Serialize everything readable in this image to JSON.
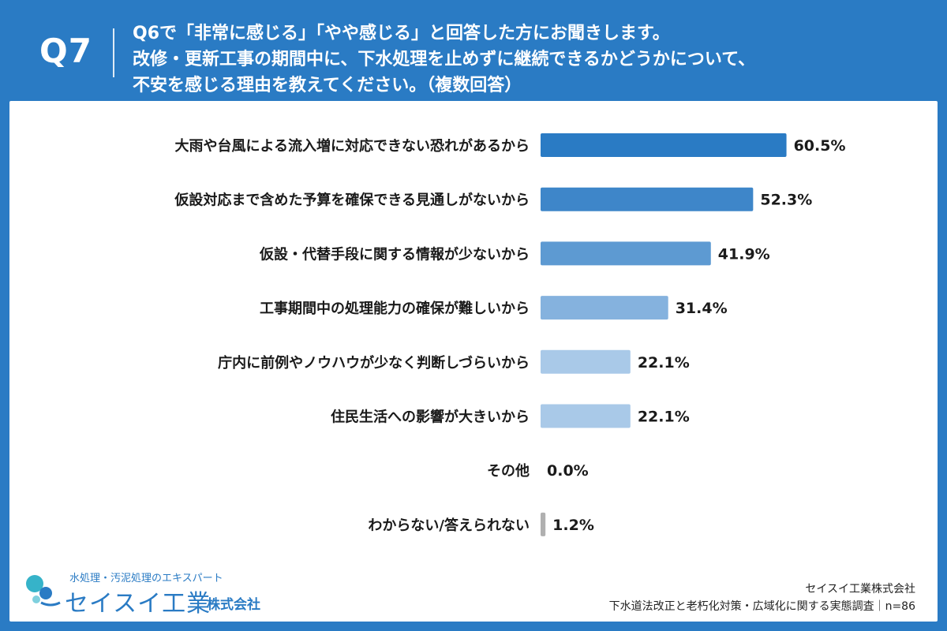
{
  "header": {
    "q_label": "Q7",
    "question_lines": [
      "Q6で「非常に感じる」「やや感じる」と回答した方にお聞きします。",
      "改修・更新工事の期間中に、下水処理を止めずに継続できるかどうかについて、",
      "不安を感じる理由を教えてください。（複数回答）"
    ]
  },
  "colors": {
    "background": "#2a7bc4",
    "bars": [
      "#2a7bc4",
      "#3e86c9",
      "#5d9ad2",
      "#85b2de",
      "#a9c9e8",
      "#a9c9e8",
      "#a9c9e8",
      "#b0b0b0"
    ]
  },
  "chart_data": {
    "type": "bar",
    "orientation": "horizontal",
    "categories": [
      "大雨や台風による流入増に対応できない恐れがあるから",
      "仮設対応まで含めた予算を確保できる見通しがないから",
      "仮設・代替手段に関する情報が少ないから",
      "工事期間中の処理能力の確保が難しいから",
      "庁内に前例やノウハウが少なく判断しづらいから",
      "住民生活への影響が大きいから",
      "その他",
      "わからない/答えられない"
    ],
    "values": [
      60.5,
      52.3,
      41.9,
      31.4,
      22.1,
      22.1,
      0.0,
      1.2
    ],
    "value_labels": [
      "60.5%",
      "52.3%",
      "41.9%",
      "31.4%",
      "22.1%",
      "22.1%",
      "0.0%",
      "1.2%"
    ],
    "unit": "%",
    "xlim": [
      0,
      100
    ],
    "grid": false,
    "legend": false
  },
  "footer": {
    "logo_tagline": "水処理・汚泥処理のエキスパート",
    "logo_name": "セイスイ工業",
    "logo_suffix": "株式会社",
    "company": "セイスイ工業株式会社",
    "survey": "下水道法改正と老朽化対策・広域化に関する実態調査｜n=86"
  }
}
